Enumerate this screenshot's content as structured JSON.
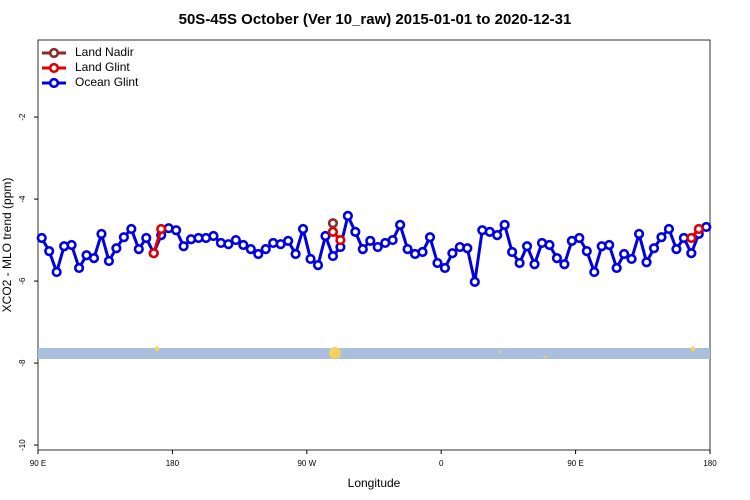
{
  "chart_data": {
    "type": "line",
    "title": "50S-45S October (Ver 10_raw)   2015-01-01 to 2020-12-31",
    "xlabel": "Longitude",
    "ylabel": "XCO2 - MLO trend (ppm)",
    "x": [
      92.5,
      97.5,
      102.5,
      107.5,
      112.5,
      117.5,
      122.5,
      127.5,
      132.5,
      137.5,
      142.5,
      147.5,
      152.5,
      157.5,
      162.5,
      167.5,
      172.5,
      177.5,
      182.5,
      187.5,
      192.5,
      197.5,
      202.5,
      207.5,
      212.5,
      217.5,
      222.5,
      227.5,
      232.5,
      237.5,
      242.5,
      247.5,
      252.5,
      257.5,
      262.5,
      267.5,
      272.5,
      277.5,
      282.5,
      287.5,
      292.5,
      297.5,
      302.5,
      307.5,
      312.5,
      317.5,
      322.5,
      327.5,
      332.5,
      337.5,
      342.5,
      347.5,
      352.5,
      357.5,
      362.5,
      367.5,
      372.5,
      377.5,
      382.5,
      387.5,
      392.5,
      397.5,
      402.5,
      407.5,
      412.5,
      417.5,
      422.5,
      427.5,
      432.5,
      437.5,
      442.5,
      447.5,
      452.5,
      457.5,
      462.5,
      467.5,
      472.5,
      477.5,
      482.5,
      487.5,
      492.5,
      497.5,
      502.5,
      507.5,
      512.5,
      517.5,
      522.5,
      527.5,
      532.5,
      537.5
    ],
    "xlim": [
      90,
      540
    ],
    "xticks": [
      {
        "value": 90,
        "label": "90 E"
      },
      {
        "value": 180,
        "label": "180"
      },
      {
        "value": 270,
        "label": "90 W"
      },
      {
        "value": 360,
        "label": "0"
      },
      {
        "value": 450,
        "label": "90 E"
      },
      {
        "value": 540,
        "label": "180"
      }
    ],
    "ylim": [
      -10.12,
      -0.12
    ],
    "yticks": [
      -2,
      -4,
      -6,
      -8,
      -10
    ],
    "legend": "upper left",
    "series": [
      {
        "name": "Land Nadir",
        "color": "#8b2a2a",
        "values": [
          null,
          null,
          null,
          null,
          null,
          null,
          null,
          null,
          null,
          null,
          null,
          null,
          null,
          null,
          null,
          null,
          null,
          null,
          null,
          null,
          null,
          null,
          null,
          null,
          null,
          null,
          null,
          null,
          null,
          null,
          null,
          null,
          null,
          null,
          null,
          null,
          null,
          null,
          null,
          -4.59,
          null,
          null,
          null,
          null,
          null,
          null,
          null,
          null,
          null,
          null,
          null,
          null,
          null,
          null,
          null,
          null,
          null,
          null,
          null,
          null,
          null,
          null,
          null,
          null,
          null,
          null,
          null,
          null,
          null,
          null,
          null,
          null,
          null,
          null,
          null,
          null,
          null,
          null,
          null,
          null,
          null,
          null,
          null,
          null,
          null,
          null,
          null,
          null,
          null,
          null
        ]
      },
      {
        "name": "Land Glint",
        "color": "#e00000",
        "values": [
          null,
          null,
          null,
          null,
          null,
          null,
          null,
          null,
          null,
          null,
          null,
          null,
          null,
          null,
          null,
          -5.32,
          -4.73,
          null,
          null,
          null,
          null,
          null,
          null,
          null,
          null,
          null,
          null,
          null,
          null,
          null,
          null,
          null,
          null,
          null,
          null,
          null,
          null,
          null,
          null,
          -4.8,
          -5.0,
          null,
          null,
          null,
          null,
          null,
          null,
          null,
          null,
          null,
          null,
          null,
          null,
          null,
          null,
          null,
          null,
          null,
          null,
          null,
          null,
          null,
          null,
          null,
          null,
          null,
          null,
          null,
          null,
          null,
          null,
          null,
          null,
          null,
          null,
          null,
          null,
          null,
          null,
          null,
          null,
          null,
          null,
          null,
          null,
          null,
          null,
          -4.95,
          -4.73,
          null
        ]
      },
      {
        "name": "Ocean Glint",
        "color": "#0000e0",
        "values": [
          -4.95,
          -5.27,
          -5.78,
          -5.15,
          -5.12,
          -5.68,
          -5.37,
          -5.44,
          -4.85,
          -5.51,
          -5.2,
          -4.93,
          -4.73,
          -5.22,
          -4.95,
          -5.32,
          -4.88,
          -4.71,
          -4.76,
          -5.15,
          -4.98,
          -4.95,
          -4.95,
          -4.9,
          -5.07,
          -5.1,
          -5.0,
          -5.12,
          -5.22,
          -5.34,
          -5.22,
          -5.07,
          -5.1,
          -5.02,
          -5.34,
          -4.73,
          -5.46,
          -5.61,
          -4.9,
          -5.39,
          -5.17,
          -4.41,
          -4.8,
          -5.22,
          -5.02,
          -5.17,
          -5.07,
          -5.0,
          -4.63,
          -5.22,
          -5.34,
          -5.29,
          -4.93,
          -5.56,
          -5.68,
          -5.32,
          -5.17,
          -5.2,
          -6.02,
          -4.76,
          -4.8,
          -4.88,
          -4.63,
          -5.29,
          -5.56,
          -5.15,
          -5.59,
          -5.07,
          -5.12,
          -5.44,
          -5.59,
          -5.02,
          -4.95,
          -5.27,
          -5.78,
          -5.15,
          -5.12,
          -5.68,
          -5.34,
          -5.46,
          -4.85,
          -5.54,
          -5.2,
          -4.93,
          -4.73,
          -5.22,
          -4.95,
          -5.32,
          -4.85,
          -4.68
        ]
      }
    ]
  }
}
